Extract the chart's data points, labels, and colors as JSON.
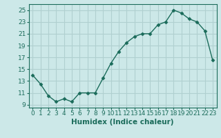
{
  "x": [
    0,
    1,
    2,
    3,
    4,
    5,
    6,
    7,
    8,
    9,
    10,
    11,
    12,
    13,
    14,
    15,
    16,
    17,
    18,
    19,
    20,
    21,
    22,
    23
  ],
  "y": [
    14.0,
    12.5,
    10.5,
    9.5,
    10.0,
    9.5,
    11.0,
    11.0,
    11.0,
    13.5,
    16.0,
    18.0,
    19.5,
    20.5,
    21.0,
    21.0,
    22.5,
    23.0,
    25.0,
    24.5,
    23.5,
    23.0,
    21.5,
    16.5
  ],
  "xlabel": "Humidex (Indice chaleur)",
  "xlim": [
    -0.5,
    23.5
  ],
  "ylim": [
    8.5,
    26.0
  ],
  "yticks": [
    9,
    11,
    13,
    15,
    17,
    19,
    21,
    23,
    25
  ],
  "xticks": [
    0,
    1,
    2,
    3,
    4,
    5,
    6,
    7,
    8,
    9,
    10,
    11,
    12,
    13,
    14,
    15,
    16,
    17,
    18,
    19,
    20,
    21,
    22,
    23
  ],
  "line_color": "#1a6b5a",
  "marker": "D",
  "marker_size": 2.5,
  "bg_color": "#cce8e8",
  "grid_color": "#b0d0d0",
  "tick_label_fontsize": 6.5,
  "xlabel_fontsize": 7.5
}
